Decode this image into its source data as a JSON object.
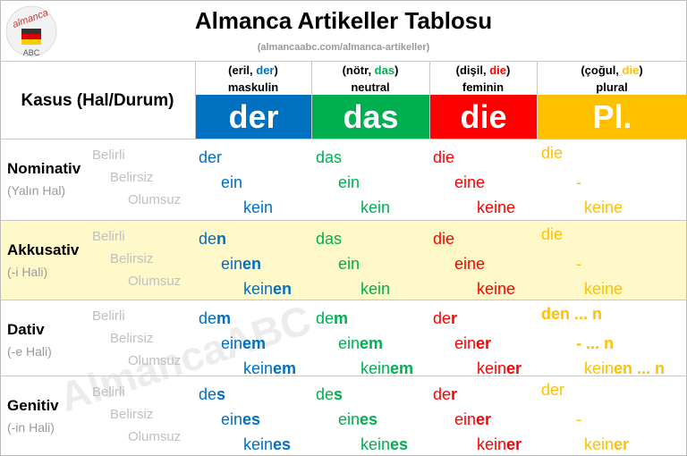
{
  "header": {
    "title": "Almanca Artikeller Tablosu",
    "url": "(almancaabc.com/almanca-artikeller)",
    "logo": "almanca",
    "logo_sub": "ABC"
  },
  "watermark": "AlmancaABC",
  "table": {
    "corner": "Kasus (Hal/Durum)",
    "columns": [
      {
        "open": "(eril, ",
        "word": "der",
        "close": ")",
        "gender": "maskulin",
        "article": "der",
        "color": "#0070c0"
      },
      {
        "open": "(nötr, ",
        "word": "das",
        "close": ")",
        "gender": "neutral",
        "article": "das",
        "color": "#00b050"
      },
      {
        "open": "(dişil, ",
        "word": "die",
        "close": ")",
        "gender": "feminin",
        "article": "die",
        "color": "#ff0000"
      },
      {
        "open": "(çoğul, ",
        "word": "die",
        "close": ")",
        "gender": "plural",
        "article": "Pl.",
        "color": "#ffc000"
      }
    ],
    "rows": [
      {
        "case": "Nominativ",
        "case_sub": "(Yalın Hal)",
        "types": [
          "Belirli",
          "Belirsiz",
          "Olumsuz"
        ],
        "highlight": false,
        "cells": [
          [
            {
              "plain": "der"
            },
            {
              "plain": "ein"
            },
            {
              "plain": "kein"
            }
          ],
          [
            {
              "plain": "das"
            },
            {
              "plain": "ein"
            },
            {
              "plain": "kein"
            }
          ],
          [
            {
              "plain": "die"
            },
            {
              "plain": "eine"
            },
            {
              "plain": "keine"
            }
          ],
          [
            {
              "plain": "die"
            },
            {
              "plain": "-"
            },
            {
              "plain": "keine"
            }
          ]
        ]
      },
      {
        "case": "Akkusativ",
        "case_sub": "(-i Hali)",
        "types": [
          "Belirli",
          "Belirsiz",
          "Olumsuz"
        ],
        "highlight": true,
        "cells": [
          [
            {
              "plain": "de",
              "bold": "n"
            },
            {
              "plain": "ein",
              "bold": "en"
            },
            {
              "plain": "kein",
              "bold": "en"
            }
          ],
          [
            {
              "plain": "das"
            },
            {
              "plain": "ein"
            },
            {
              "plain": "kein"
            }
          ],
          [
            {
              "plain": "die"
            },
            {
              "plain": "eine"
            },
            {
              "plain": "keine"
            }
          ],
          [
            {
              "plain": "die"
            },
            {
              "plain": "-"
            },
            {
              "plain": "keine"
            }
          ]
        ]
      },
      {
        "case": "Dativ",
        "case_sub": "(-e Hali)",
        "types": [
          "Belirli",
          "Belirsiz",
          "Olumsuz"
        ],
        "highlight": false,
        "cells": [
          [
            {
              "plain": "de",
              "bold": "m"
            },
            {
              "plain": "ein",
              "bold": "em"
            },
            {
              "plain": "kein",
              "bold": "em"
            }
          ],
          [
            {
              "plain": "de",
              "bold": "m"
            },
            {
              "plain": "ein",
              "bold": "em"
            },
            {
              "plain": "kein",
              "bold": "em"
            }
          ],
          [
            {
              "plain": "de",
              "bold": "r"
            },
            {
              "plain": "ein",
              "bold": "er"
            },
            {
              "plain": "kein",
              "bold": "er"
            }
          ],
          [
            {
              "bold": "den ... n"
            },
            {
              "bold": "- ... n"
            },
            {
              "plain": "kein",
              "bold": "en ... n"
            }
          ]
        ]
      },
      {
        "case": "Genitiv",
        "case_sub": "(-in Hali)",
        "types": [
          "Belirli",
          "Belirsiz",
          "Olumsuz"
        ],
        "highlight": false,
        "cells": [
          [
            {
              "plain": "de",
              "bold": "s"
            },
            {
              "plain": "ein",
              "bold": "es"
            },
            {
              "plain": "kein",
              "bold": "es"
            }
          ],
          [
            {
              "plain": "de",
              "bold": "s"
            },
            {
              "plain": "ein",
              "bold": "es"
            },
            {
              "plain": "kein",
              "bold": "es"
            }
          ],
          [
            {
              "plain": "de",
              "bold": "r"
            },
            {
              "plain": "ein",
              "bold": "er"
            },
            {
              "plain": "kein",
              "bold": "er"
            }
          ],
          [
            {
              "plain": "der"
            },
            {
              "plain": "-"
            },
            {
              "plain": "kein",
              "bold": "er"
            }
          ]
        ]
      }
    ]
  }
}
